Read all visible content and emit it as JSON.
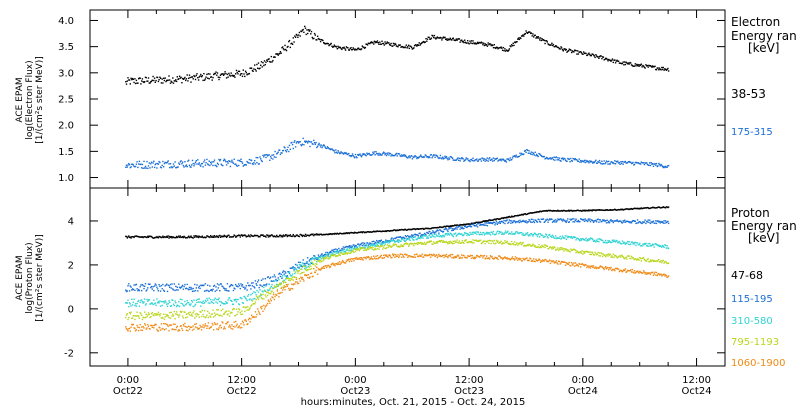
{
  "chart_data": [
    {
      "type": "scatter",
      "ylabel_lines": [
        "ACE EPAM",
        "log(Electron Flux)",
        "[1/(cm²s ster MeV)]"
      ],
      "legend_title": [
        "Electron",
        "Energy ran",
        "[keV]"
      ],
      "ylim": [
        0.8,
        4.2
      ],
      "yticks": [
        1.0,
        1.5,
        2.0,
        2.5,
        3.0,
        3.5,
        4.0
      ],
      "ytick_labels": [
        "1.0",
        "1.5",
        "2.0",
        "2.5",
        "3.0",
        "3.5",
        "4.0"
      ],
      "series": [
        {
          "name": "38-53",
          "color": "#000000",
          "x": [
            -0.3,
            0,
            6,
            12,
            14,
            16,
            18,
            18.5,
            20,
            22,
            24,
            26,
            28,
            30,
            32,
            34,
            36,
            38,
            40,
            42,
            44,
            46,
            48,
            50,
            52,
            54,
            56,
            57
          ],
          "y": [
            2.82,
            2.85,
            2.9,
            3.0,
            3.15,
            3.4,
            3.72,
            3.85,
            3.65,
            3.5,
            3.45,
            3.6,
            3.55,
            3.5,
            3.7,
            3.65,
            3.6,
            3.55,
            3.45,
            3.8,
            3.6,
            3.45,
            3.38,
            3.3,
            3.2,
            3.15,
            3.1,
            3.08
          ]
        },
        {
          "name": "175-315",
          "color": "#1a6fd6",
          "x": [
            -0.3,
            6,
            12,
            14,
            16,
            18,
            20,
            22,
            24,
            26,
            28,
            30,
            32,
            34,
            36,
            38,
            40,
            42,
            44,
            46,
            48,
            50,
            52,
            54,
            56,
            57
          ],
          "y": [
            1.25,
            1.28,
            1.3,
            1.35,
            1.48,
            1.7,
            1.65,
            1.5,
            1.42,
            1.48,
            1.45,
            1.4,
            1.42,
            1.38,
            1.35,
            1.36,
            1.34,
            1.52,
            1.4,
            1.35,
            1.33,
            1.3,
            1.3,
            1.28,
            1.25,
            1.22
          ]
        }
      ]
    },
    {
      "type": "scatter",
      "ylabel_lines": [
        "ACE EPAM",
        "log(Proton Flux)",
        "[1/(cm²s ster MeV)]"
      ],
      "legend_title": [
        "Proton",
        "Energy ran",
        "[keV]"
      ],
      "ylim": [
        -2.6,
        5.5
      ],
      "yticks": [
        -2,
        0,
        2,
        4
      ],
      "ytick_labels": [
        "-2",
        "0",
        "2",
        "4"
      ],
      "series": [
        {
          "name": "47-68",
          "color": "#000000",
          "x": [
            -0.3,
            6,
            12,
            16,
            20,
            24,
            28,
            32,
            36,
            40,
            44,
            48,
            52,
            56,
            57
          ],
          "y": [
            3.3,
            3.3,
            3.35,
            3.35,
            3.4,
            3.5,
            3.6,
            3.7,
            3.9,
            4.2,
            4.5,
            4.5,
            4.55,
            4.65,
            4.65
          ]
        },
        {
          "name": "115-195",
          "color": "#1a6fd6",
          "x": [
            -0.3,
            6,
            12,
            14,
            16,
            18,
            20,
            22,
            24,
            28,
            32,
            36,
            40,
            44,
            48,
            52,
            56,
            57
          ],
          "y": [
            1.0,
            1.0,
            1.0,
            1.2,
            1.5,
            2.0,
            2.4,
            2.7,
            2.9,
            3.2,
            3.5,
            3.8,
            4.0,
            4.05,
            4.05,
            4.0,
            4.0,
            4.0
          ]
        },
        {
          "name": "310-580",
          "color": "#2fd3d3",
          "x": [
            -0.3,
            6,
            12,
            14,
            16,
            18,
            20,
            22,
            24,
            28,
            32,
            36,
            40,
            44,
            48,
            52,
            56,
            57
          ],
          "y": [
            0.3,
            0.3,
            0.4,
            0.8,
            1.3,
            1.9,
            2.3,
            2.6,
            2.8,
            3.1,
            3.35,
            3.45,
            3.5,
            3.35,
            3.2,
            3.05,
            2.9,
            2.85
          ]
        },
        {
          "name": "795-1193",
          "color": "#b8d61c",
          "x": [
            -0.3,
            6,
            12,
            14,
            16,
            18,
            20,
            22,
            24,
            28,
            32,
            36,
            40,
            44,
            48,
            52,
            56,
            57
          ],
          "y": [
            -0.3,
            -0.25,
            -0.1,
            0.6,
            1.1,
            1.7,
            2.2,
            2.5,
            2.7,
            2.9,
            3.05,
            3.1,
            3.05,
            2.85,
            2.6,
            2.4,
            2.2,
            2.15
          ]
        },
        {
          "name": "1060-1900",
          "color": "#f08a17",
          "x": [
            -0.3,
            6,
            12,
            14,
            16,
            18,
            20,
            22,
            24,
            28,
            32,
            36,
            40,
            44,
            48,
            52,
            56,
            57
          ],
          "y": [
            -0.8,
            -0.8,
            -0.7,
            0.0,
            0.8,
            1.3,
            1.8,
            2.1,
            2.3,
            2.45,
            2.45,
            2.4,
            2.35,
            2.2,
            2.0,
            1.8,
            1.6,
            1.5
          ]
        }
      ]
    }
  ],
  "x_axis": {
    "xlim": [
      -4,
      63
    ],
    "major_ticks": [
      0,
      12,
      24,
      36,
      48,
      60
    ],
    "labeled_ticks": [
      {
        "x": 0,
        "time": "0:00",
        "date": "Oct22"
      },
      {
        "x": 12,
        "time": "12:00",
        "date": "Oct22"
      },
      {
        "x": 24,
        "time": "0:00",
        "date": "Oct23"
      },
      {
        "x": 36,
        "time": "12:00",
        "date": "Oct23"
      },
      {
        "x": 48,
        "time": "0:00",
        "date": "Oct24"
      },
      {
        "x": 60,
        "time": "12:00",
        "date": "Oct24"
      }
    ],
    "xlabel": "hours:minutes, Oct. 21, 2015 - Oct. 24, 2015"
  }
}
